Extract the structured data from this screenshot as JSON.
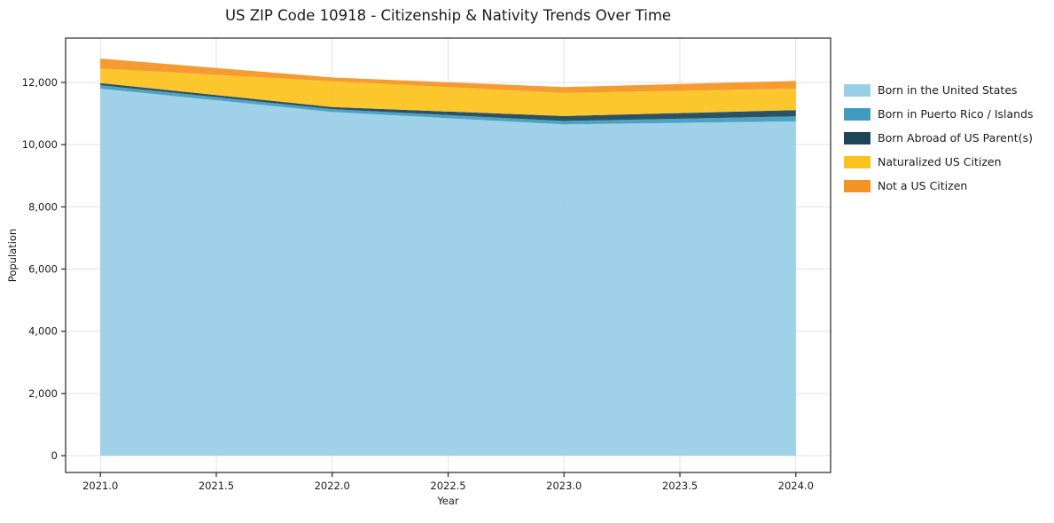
{
  "chart_data": {
    "type": "area",
    "stacked": true,
    "title": "US ZIP Code 10918 - Citizenship & Nativity Trends Over Time",
    "xlabel": "Year",
    "ylabel": "Population",
    "x": [
      2021,
      2022,
      2023,
      2024
    ],
    "series": [
      {
        "name": "Born in the United States",
        "color": "#98cfe6",
        "values": [
          11800,
          11050,
          10650,
          10750
        ]
      },
      {
        "name": "Born in Puerto Rico / Islands",
        "color": "#3f9cbf",
        "values": [
          110,
          90,
          110,
          160
        ]
      },
      {
        "name": "Born Abroad of US Parent(s)",
        "color": "#1c4557",
        "values": [
          70,
          70,
          160,
          200
        ]
      },
      {
        "name": "Naturalized US Citizen",
        "color": "#fcc21d",
        "values": [
          470,
          830,
          740,
          690
        ]
      },
      {
        "name": "Not a US Citizen",
        "color": "#f49322",
        "values": [
          320,
          120,
          190,
          250
        ]
      }
    ],
    "x_ticks": {
      "values": [
        2021.0,
        2021.5,
        2022.0,
        2022.5,
        2023.0,
        2023.5,
        2024.0
      ],
      "labels": [
        "2021.0",
        "2021.5",
        "2022.0",
        "2022.5",
        "2023.0",
        "2023.5",
        "2024.0"
      ]
    },
    "y_ticks": {
      "values": [
        0,
        2000,
        4000,
        6000,
        8000,
        10000,
        12000
      ],
      "labels": [
        "0",
        "2,000",
        "4,000",
        "6,000",
        "8,000",
        "10,000",
        "12,000"
      ]
    },
    "xlim": [
      2020.85,
      2024.15
    ],
    "ylim": [
      -540,
      13425
    ],
    "grid": true,
    "legend_position": "right"
  }
}
